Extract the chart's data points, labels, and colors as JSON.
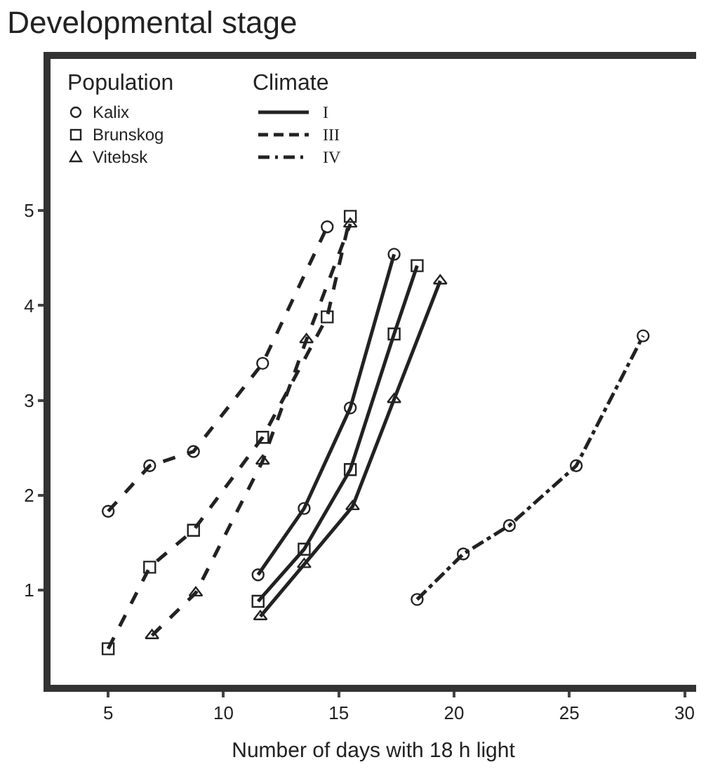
{
  "chart_data": {
    "type": "line",
    "title": "Developmental stage",
    "xlabel": "Number of days with 18 h light",
    "legend_title": "Population",
    "legend": "top left",
    "xlim": [
      2.5,
      30.5
    ],
    "xticks": [
      5,
      10,
      15,
      20,
      25,
      30
    ],
    "ylim": [
      0,
      6.6
    ],
    "yticks": [
      1,
      2,
      3,
      4,
      5
    ],
    "grid": false,
    "annotations": [
      "Climate",
      "I",
      "III",
      "IV"
    ],
    "series": [
      {
        "name": "Kalix",
        "color": "#222222",
        "marker": "circle",
        "line_style": "solid",
        "x": [
          11.5,
          13.5,
          15.5,
          17.4
        ],
        "values": [
          1.16,
          1.86,
          2.92,
          4.54
        ]
      },
      {
        "name": "Brunskog",
        "color": "#222222",
        "marker": "square",
        "line_style": "solid",
        "x": [
          11.5,
          13.5,
          15.5,
          17.4,
          18.4
        ],
        "values": [
          0.88,
          1.43,
          2.27,
          3.7,
          4.42
        ]
      },
      {
        "name": "Vitebsk",
        "color": "#222222",
        "marker": "triangle",
        "line_style": "solid",
        "x": [
          11.6,
          13.5,
          15.6,
          17.4,
          19.4
        ],
        "values": [
          0.72,
          1.27,
          1.88,
          3.01,
          4.26
        ]
      },
      {
        "color": "#222222",
        "marker": "circle",
        "line_style": "dashed",
        "x": [
          5,
          6.8,
          8.7,
          11.7,
          14.5
        ],
        "values": [
          1.83,
          2.31,
          2.46,
          3.39,
          4.83
        ]
      },
      {
        "color": "#222222",
        "marker": "square",
        "line_style": "dashed",
        "x": [
          5,
          6.8,
          8.7,
          11.7,
          14.5,
          15.5
        ],
        "values": [
          0.38,
          1.24,
          1.63,
          2.61,
          3.88,
          4.94
        ]
      },
      {
        "color": "#222222",
        "marker": "triangle",
        "line_style": "dashed",
        "x": [
          6.9,
          8.8,
          11.7,
          13.6,
          15.5
        ],
        "values": [
          0.52,
          0.97,
          2.36,
          3.64,
          4.86
        ]
      },
      {
        "color": "#222222",
        "marker": "circle",
        "line_style": "dashdot",
        "x": [
          18.4,
          20.4,
          22.4,
          25.3,
          28.2
        ],
        "values": [
          0.9,
          1.38,
          1.68,
          2.31,
          3.68
        ]
      }
    ]
  }
}
